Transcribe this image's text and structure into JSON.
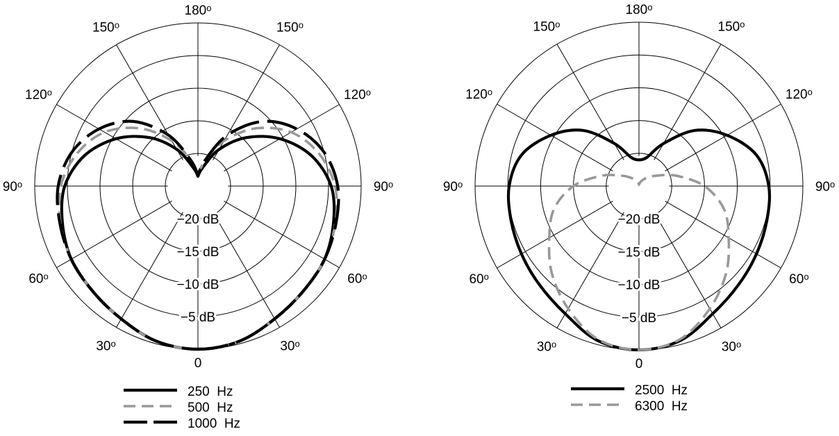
{
  "chart_data": [
    {
      "type": "polar",
      "r_unit": "dB",
      "r_range": [
        -25,
        0
      ],
      "ring_labels": [
        "−5 dB",
        "−10 dB",
        "−15 dB",
        "−20 dB"
      ],
      "ring_values": [
        -5,
        -10,
        -15,
        -20
      ],
      "angle_ticks": [
        0,
        30,
        60,
        90,
        120,
        150,
        180
      ],
      "angle_tick_labels": [
        "0",
        "30",
        "60",
        "90",
        "120",
        "150",
        "180"
      ],
      "degree_symbol": "o",
      "grid": true,
      "legend_position": "bottom",
      "angles": [
        0,
        15,
        30,
        45,
        60,
        75,
        90,
        105,
        120,
        135,
        150,
        165,
        180
      ],
      "symmetric": true,
      "series": [
        {
          "name": "250  Hz",
          "color": "#000000",
          "style": "solid",
          "values": [
            0,
            -0.4,
            -1.5,
            -2.2,
            -2.6,
            -3.5,
            -4.6,
            -7,
            -10.5,
            -14.5,
            -18.5,
            -22,
            -23.5
          ]
        },
        {
          "name": "500  Hz",
          "color": "#999999",
          "style": "dashed",
          "values": [
            0,
            -0.4,
            -1.5,
            -2.2,
            -2.6,
            -3.2,
            -4,
            -5.8,
            -8.5,
            -12.5,
            -17,
            -21,
            -23.5
          ]
        },
        {
          "name": "1000  Hz",
          "color": "#000000",
          "style": "long-dash",
          "values": [
            0,
            -0.4,
            -1.5,
            -2.2,
            -2.6,
            -3.1,
            -3.6,
            -5,
            -7.5,
            -11,
            -16,
            -21,
            -23.5
          ]
        }
      ],
      "extra_legend_entry": {
        "color": "#000000",
        "style": "double-line"
      }
    },
    {
      "type": "polar",
      "r_unit": "dB",
      "r_range": [
        -25,
        0
      ],
      "ring_labels": [
        "−5 dB",
        "−10 dB",
        "−15 dB",
        "−20 dB"
      ],
      "ring_values": [
        -5,
        -10,
        -15,
        -20
      ],
      "angle_ticks": [
        0,
        30,
        60,
        90,
        120,
        150,
        180
      ],
      "angle_tick_labels": [
        "0",
        "30",
        "60",
        "90",
        "120",
        "150",
        "180"
      ],
      "degree_symbol": "o",
      "grid": true,
      "legend_position": "bottom",
      "angles": [
        0,
        15,
        30,
        45,
        60,
        75,
        90,
        105,
        120,
        135,
        150,
        165,
        180
      ],
      "symmetric": true,
      "series": [
        {
          "name": "2500  Hz",
          "color": "#000000",
          "style": "solid",
          "values": [
            0,
            -0.6,
            -2.5,
            -3.6,
            -4.3,
            -4.8,
            -5.2,
            -6.5,
            -9.5,
            -13,
            -17.5,
            -20.5,
            -21
          ]
        },
        {
          "name": "6300  Hz",
          "color": "#999999",
          "style": "dashed",
          "values": [
            0,
            -0.8,
            -3.4,
            -6.2,
            -9.2,
            -11.6,
            -15,
            -19,
            -21.8,
            -23.2,
            -24,
            -24.5,
            -24.8
          ]
        }
      ]
    }
  ]
}
